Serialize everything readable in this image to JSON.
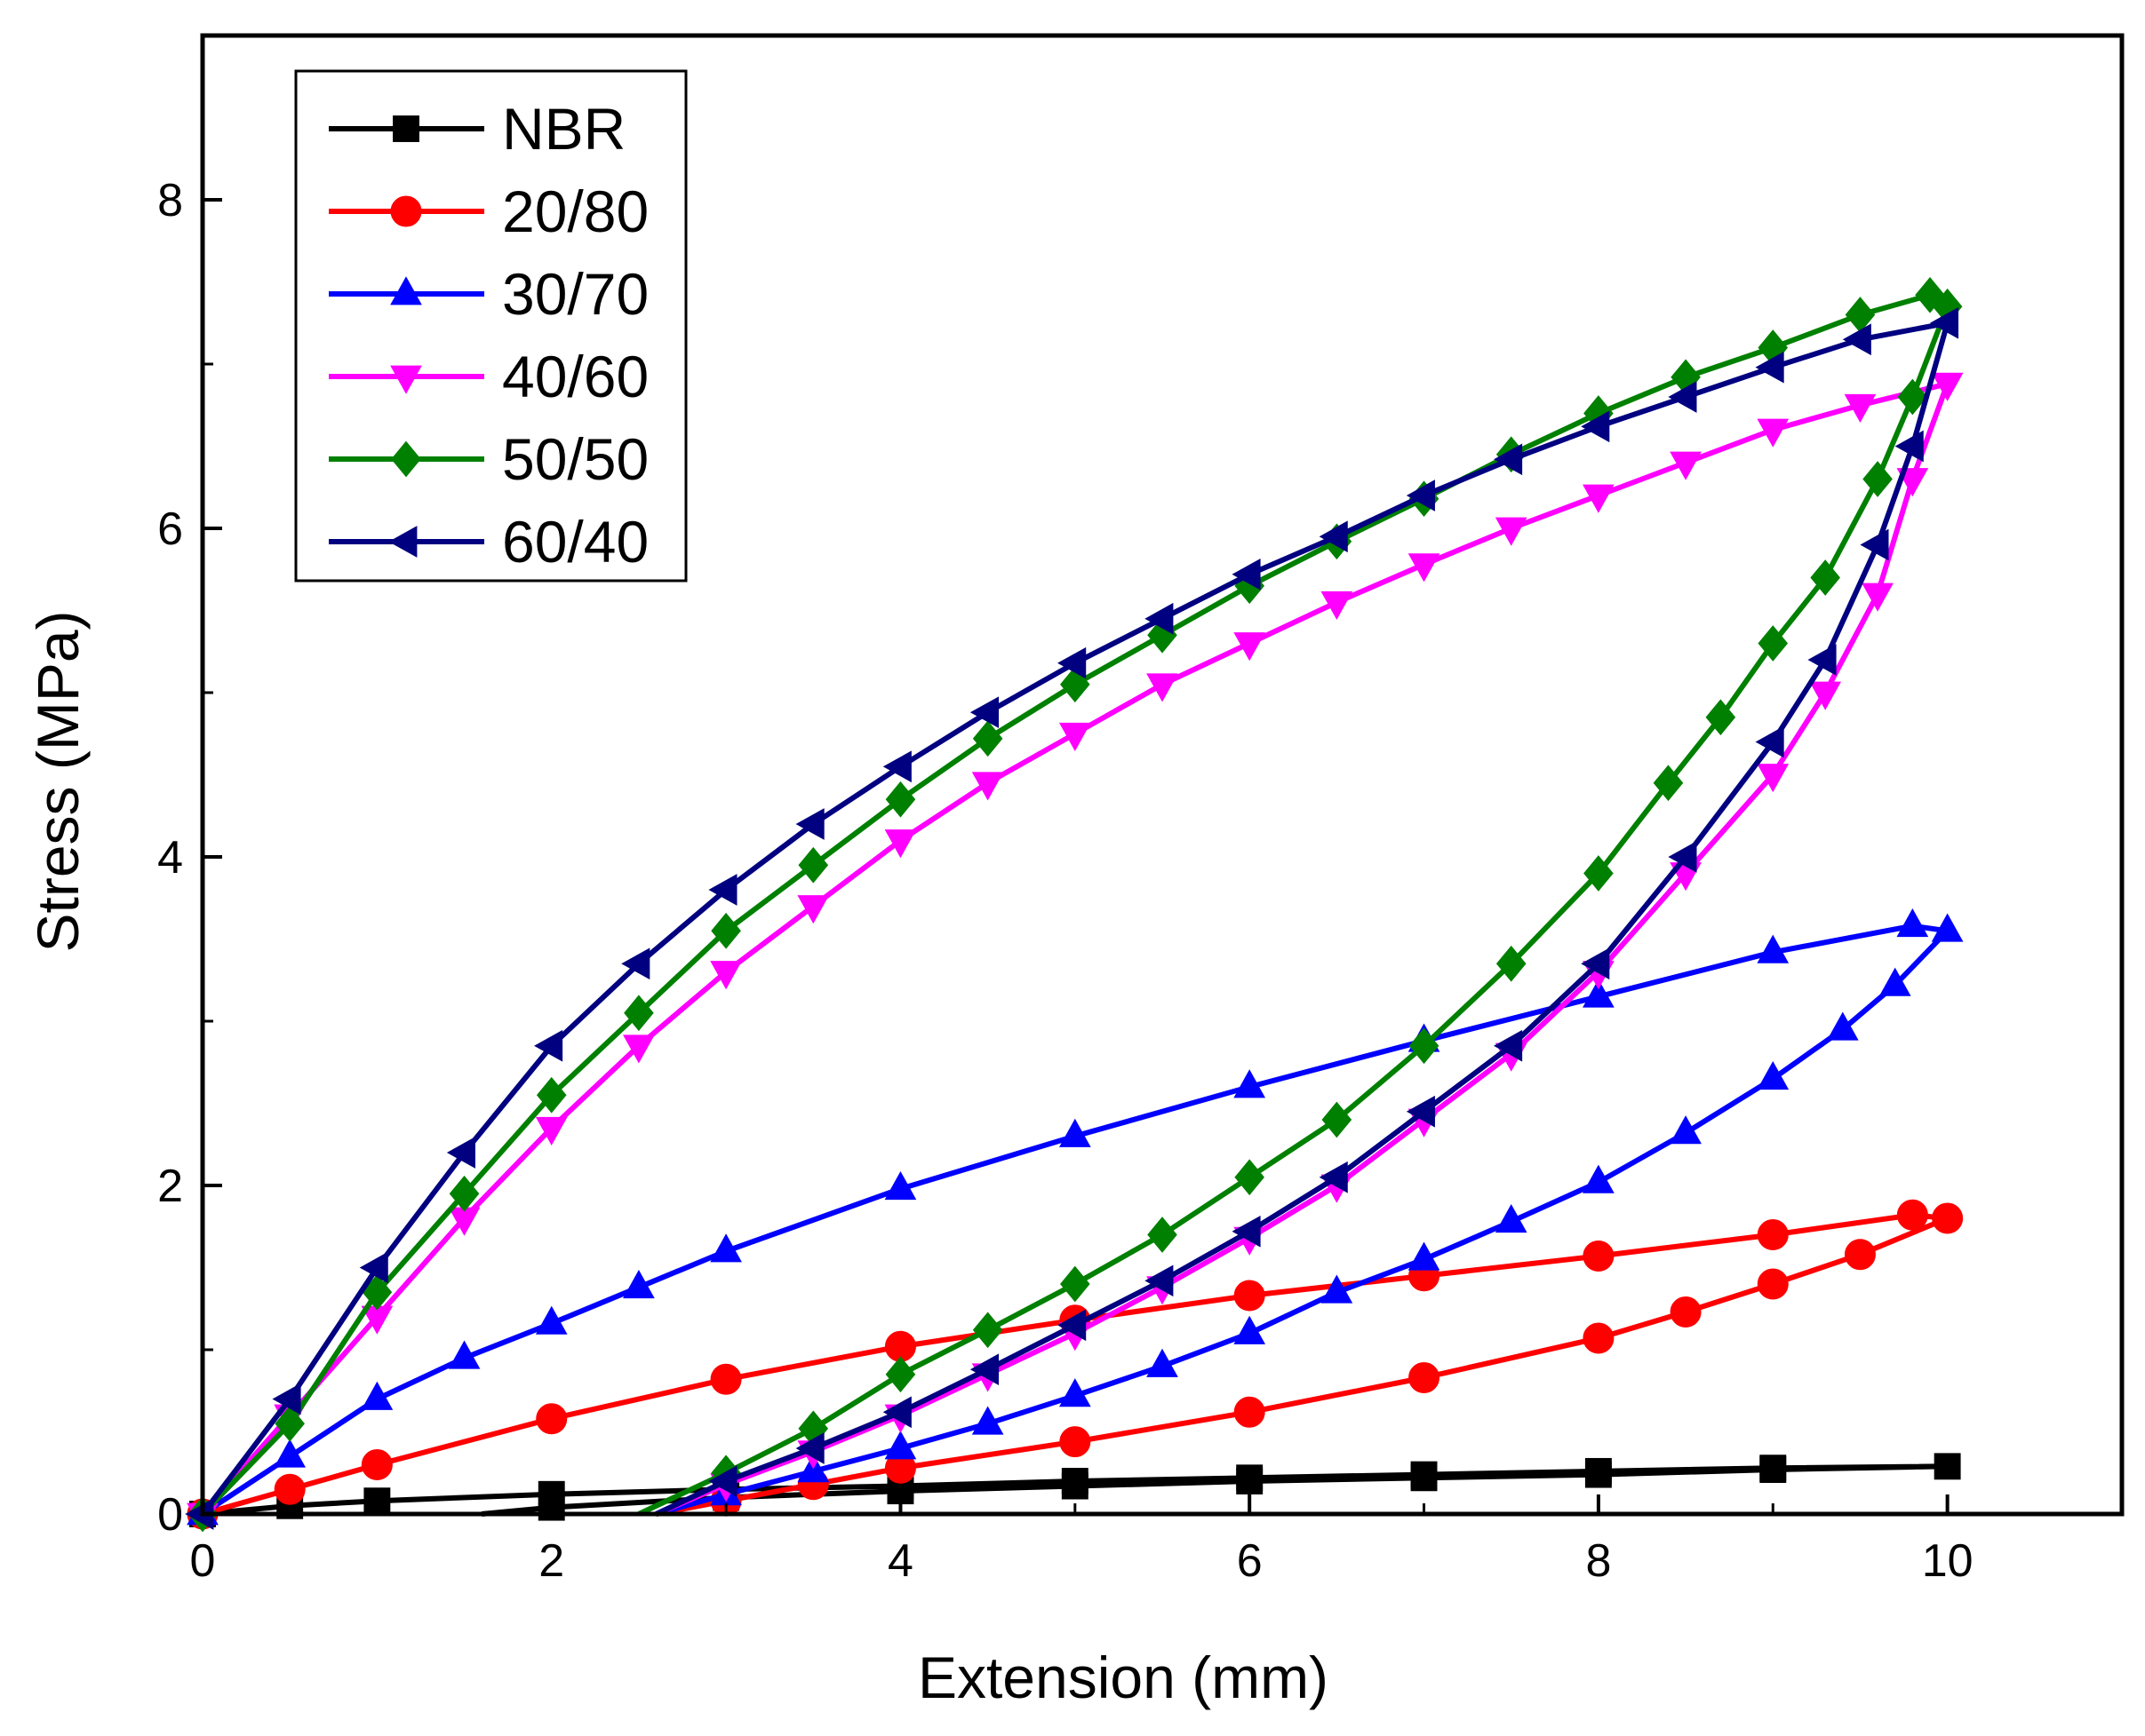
{
  "chart_data": {
    "type": "line",
    "title": "",
    "xlabel": "Extension (mm)",
    "ylabel": "Stress (MPa)",
    "xlim": [
      0,
      11
    ],
    "ylim": [
      0,
      9
    ],
    "x_ticks": [
      "0",
      "2",
      "4",
      "6",
      "8",
      "10"
    ],
    "y_ticks": [
      "0",
      "2",
      "4",
      "6",
      "8"
    ],
    "grid": false,
    "legend_position": "top-left",
    "series": [
      {
        "name": "NBR",
        "color": "#000000",
        "marker": "square",
        "load": [
          [
            0,
            0
          ],
          [
            0.5,
            0.05
          ],
          [
            1,
            0.08
          ],
          [
            2,
            0.12
          ],
          [
            3,
            0.15
          ],
          [
            4,
            0.17
          ],
          [
            5,
            0.2
          ],
          [
            6,
            0.22
          ],
          [
            7,
            0.24
          ],
          [
            8,
            0.26
          ],
          [
            9,
            0.28
          ],
          [
            10,
            0.29
          ]
        ],
        "unload": [
          [
            10,
            0.29
          ],
          [
            9,
            0.27
          ],
          [
            8,
            0.24
          ],
          [
            7,
            0.22
          ],
          [
            6,
            0.2
          ],
          [
            5,
            0.17
          ],
          [
            4,
            0.14
          ],
          [
            3,
            0.1
          ],
          [
            2,
            0.04
          ],
          [
            1.6,
            0
          ]
        ]
      },
      {
        "name": "20/80",
        "color": "#ff0000",
        "marker": "circle",
        "load": [
          [
            0,
            0
          ],
          [
            0.5,
            0.15
          ],
          [
            1,
            0.3
          ],
          [
            2,
            0.58
          ],
          [
            3,
            0.82
          ],
          [
            4,
            1.02
          ],
          [
            5,
            1.18
          ],
          [
            6,
            1.33
          ],
          [
            7,
            1.45
          ],
          [
            8,
            1.57
          ],
          [
            9,
            1.7
          ],
          [
            9.8,
            1.82
          ],
          [
            10,
            1.8
          ]
        ],
        "unload": [
          [
            10,
            1.8
          ],
          [
            9.5,
            1.58
          ],
          [
            9,
            1.4
          ],
          [
            8.5,
            1.23
          ],
          [
            8,
            1.07
          ],
          [
            7,
            0.83
          ],
          [
            6,
            0.62
          ],
          [
            5,
            0.44
          ],
          [
            4,
            0.28
          ],
          [
            3.5,
            0.18
          ],
          [
            3,
            0.08
          ],
          [
            2.6,
            0
          ]
        ]
      },
      {
        "name": "30/70",
        "color": "#0000ff",
        "marker": "triangle-up",
        "load": [
          [
            0,
            0
          ],
          [
            0.5,
            0.35
          ],
          [
            1,
            0.7
          ],
          [
            1.5,
            0.95
          ],
          [
            2,
            1.16
          ],
          [
            2.5,
            1.38
          ],
          [
            3,
            1.6
          ],
          [
            4,
            1.98
          ],
          [
            5,
            2.3
          ],
          [
            6,
            2.6
          ],
          [
            7,
            2.88
          ],
          [
            8,
            3.15
          ],
          [
            9,
            3.42
          ],
          [
            9.8,
            3.58
          ],
          [
            10,
            3.55
          ]
        ],
        "unload": [
          [
            10,
            3.55
          ],
          [
            9.7,
            3.22
          ],
          [
            9.4,
            2.95
          ],
          [
            9,
            2.65
          ],
          [
            8.5,
            2.32
          ],
          [
            8,
            2.02
          ],
          [
            7.5,
            1.78
          ],
          [
            7,
            1.55
          ],
          [
            6.5,
            1.35
          ],
          [
            6,
            1.1
          ],
          [
            5.5,
            0.9
          ],
          [
            5,
            0.72
          ],
          [
            4.5,
            0.55
          ],
          [
            4,
            0.4
          ],
          [
            3.5,
            0.26
          ],
          [
            3,
            0.12
          ],
          [
            2.6,
            0
          ]
        ]
      },
      {
        "name": "40/60",
        "color": "#ff00ff",
        "marker": "triangle-down",
        "load": [
          [
            0,
            0
          ],
          [
            0.5,
            0.6
          ],
          [
            1,
            1.2
          ],
          [
            1.5,
            1.8
          ],
          [
            2,
            2.35
          ],
          [
            2.5,
            2.85
          ],
          [
            3,
            3.3
          ],
          [
            3.5,
            3.7
          ],
          [
            4,
            4.1
          ],
          [
            4.5,
            4.45
          ],
          [
            5,
            4.75
          ],
          [
            5.5,
            5.05
          ],
          [
            6,
            5.3
          ],
          [
            6.5,
            5.55
          ],
          [
            7,
            5.78
          ],
          [
            7.5,
            6.0
          ],
          [
            8,
            6.2
          ],
          [
            8.5,
            6.4
          ],
          [
            9,
            6.6
          ],
          [
            9.5,
            6.75
          ],
          [
            10,
            6.88
          ]
        ],
        "unload": [
          [
            10,
            6.88
          ],
          [
            9.8,
            6.3
          ],
          [
            9.6,
            5.6
          ],
          [
            9.3,
            5.0
          ],
          [
            9,
            4.5
          ],
          [
            8.5,
            3.9
          ],
          [
            8,
            3.3
          ],
          [
            7.5,
            2.8
          ],
          [
            7,
            2.4
          ],
          [
            6.5,
            2.0
          ],
          [
            6,
            1.68
          ],
          [
            5.5,
            1.38
          ],
          [
            5,
            1.1
          ],
          [
            4.5,
            0.85
          ],
          [
            4,
            0.6
          ],
          [
            3.5,
            0.38
          ],
          [
            3,
            0.18
          ],
          [
            2.6,
            0
          ]
        ]
      },
      {
        "name": "50/50",
        "color": "#008000",
        "marker": "diamond",
        "load": [
          [
            0,
            0
          ],
          [
            0.5,
            0.55
          ],
          [
            1,
            1.35
          ],
          [
            1.5,
            1.95
          ],
          [
            2,
            2.55
          ],
          [
            2.5,
            3.05
          ],
          [
            3,
            3.55
          ],
          [
            3.5,
            3.95
          ],
          [
            4,
            4.35
          ],
          [
            4.5,
            4.72
          ],
          [
            5,
            5.05
          ],
          [
            5.5,
            5.35
          ],
          [
            6,
            5.65
          ],
          [
            6.5,
            5.92
          ],
          [
            7,
            6.18
          ],
          [
            7.5,
            6.45
          ],
          [
            8,
            6.7
          ],
          [
            8.5,
            6.92
          ],
          [
            9,
            7.1
          ],
          [
            9.5,
            7.3
          ],
          [
            9.9,
            7.42
          ],
          [
            10,
            7.35
          ]
        ],
        "unload": [
          [
            10,
            7.35
          ],
          [
            9.8,
            6.8
          ],
          [
            9.6,
            6.3
          ],
          [
            9.3,
            5.7
          ],
          [
            9,
            5.3
          ],
          [
            8.7,
            4.85
          ],
          [
            8.4,
            4.45
          ],
          [
            8,
            3.9
          ],
          [
            7.5,
            3.35
          ],
          [
            7,
            2.85
          ],
          [
            6.5,
            2.4
          ],
          [
            6,
            2.05
          ],
          [
            5.5,
            1.7
          ],
          [
            5,
            1.4
          ],
          [
            4.5,
            1.12
          ],
          [
            4,
            0.85
          ],
          [
            3.5,
            0.52
          ],
          [
            3,
            0.25
          ],
          [
            2.5,
            0
          ]
        ]
      },
      {
        "name": "60/40",
        "color": "#000080",
        "marker": "triangle-left",
        "load": [
          [
            0,
            0
          ],
          [
            0.5,
            0.7
          ],
          [
            1,
            1.5
          ],
          [
            1.5,
            2.2
          ],
          [
            2,
            2.85
          ],
          [
            2.5,
            3.35
          ],
          [
            3,
            3.8
          ],
          [
            3.5,
            4.2
          ],
          [
            4,
            4.55
          ],
          [
            4.5,
            4.88
          ],
          [
            5,
            5.18
          ],
          [
            5.5,
            5.45
          ],
          [
            6,
            5.72
          ],
          [
            6.5,
            5.95
          ],
          [
            7,
            6.2
          ],
          [
            7.5,
            6.42
          ],
          [
            8,
            6.62
          ],
          [
            8.5,
            6.8
          ],
          [
            9,
            6.98
          ],
          [
            9.5,
            7.15
          ],
          [
            10,
            7.25
          ]
        ],
        "unload": [
          [
            10,
            7.25
          ],
          [
            9.8,
            6.5
          ],
          [
            9.6,
            5.9
          ],
          [
            9.3,
            5.2
          ],
          [
            9,
            4.7
          ],
          [
            8.5,
            4.0
          ],
          [
            8,
            3.35
          ],
          [
            7.5,
            2.85
          ],
          [
            7,
            2.45
          ],
          [
            6.5,
            2.05
          ],
          [
            6,
            1.72
          ],
          [
            5.5,
            1.42
          ],
          [
            5,
            1.15
          ],
          [
            4.5,
            0.88
          ],
          [
            4,
            0.62
          ],
          [
            3.5,
            0.4
          ],
          [
            3,
            0.2
          ],
          [
            2.6,
            0
          ]
        ]
      }
    ]
  }
}
